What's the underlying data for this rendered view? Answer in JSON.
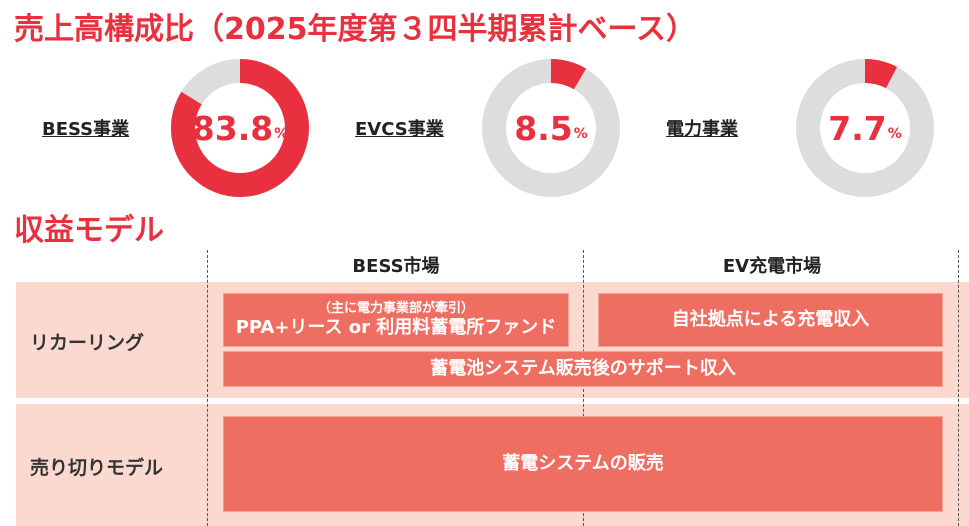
{
  "chart_data": [
    {
      "type": "pie",
      "title": "売上高構成比（2025年度第３四半期累計ベース）",
      "series": [
        {
          "name": "BESS事業",
          "value": 83.8,
          "display": "83.8",
          "unit": "%"
        },
        {
          "name": "EVCS事業",
          "value": 8.5,
          "display": "8.5",
          "unit": "%"
        },
        {
          "name": "電力事業",
          "value": 7.7,
          "display": "7.7",
          "unit": "%"
        }
      ],
      "colors": {
        "accent": "#e8303f",
        "track": "#dddddd"
      }
    },
    {
      "type": "table",
      "title": "収益モデル",
      "columns": [
        "BESS市場",
        "EV充電市場"
      ],
      "rows": [
        {
          "label": "リカーリング",
          "cells": [
            {
              "sub": "（主に電力事業部が牽引）",
              "main": "PPA+リース or 利用料蓄電所ファンド"
            },
            {
              "main": "自社拠点による充電収入"
            },
            {
              "main": "蓄電池システム販売後のサポート収入"
            }
          ]
        },
        {
          "label": "売り切りモデル",
          "cells": [
            {
              "main": "蓄電システムの販売"
            }
          ]
        }
      ],
      "colors": {
        "row_bg": "#fbd9cf",
        "box": "#ef6e62"
      }
    }
  ]
}
